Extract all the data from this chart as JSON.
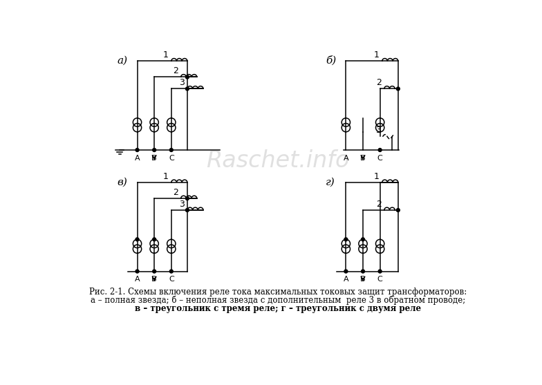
{
  "caption_line1": "Рис. 2-1. Схемы включения реле тока максимальных токовых защит трансформаторов:",
  "caption_line2": "а – полная звезда; б – неполная звезда с дополнительным  реле 3 в обратном проводе;",
  "caption_line3": "в – треугольник с тремя реле; г – треугольник с двумя реле",
  "bg_color": "#ffffff",
  "line_color": "#000000",
  "watermark": "Raschet.info"
}
